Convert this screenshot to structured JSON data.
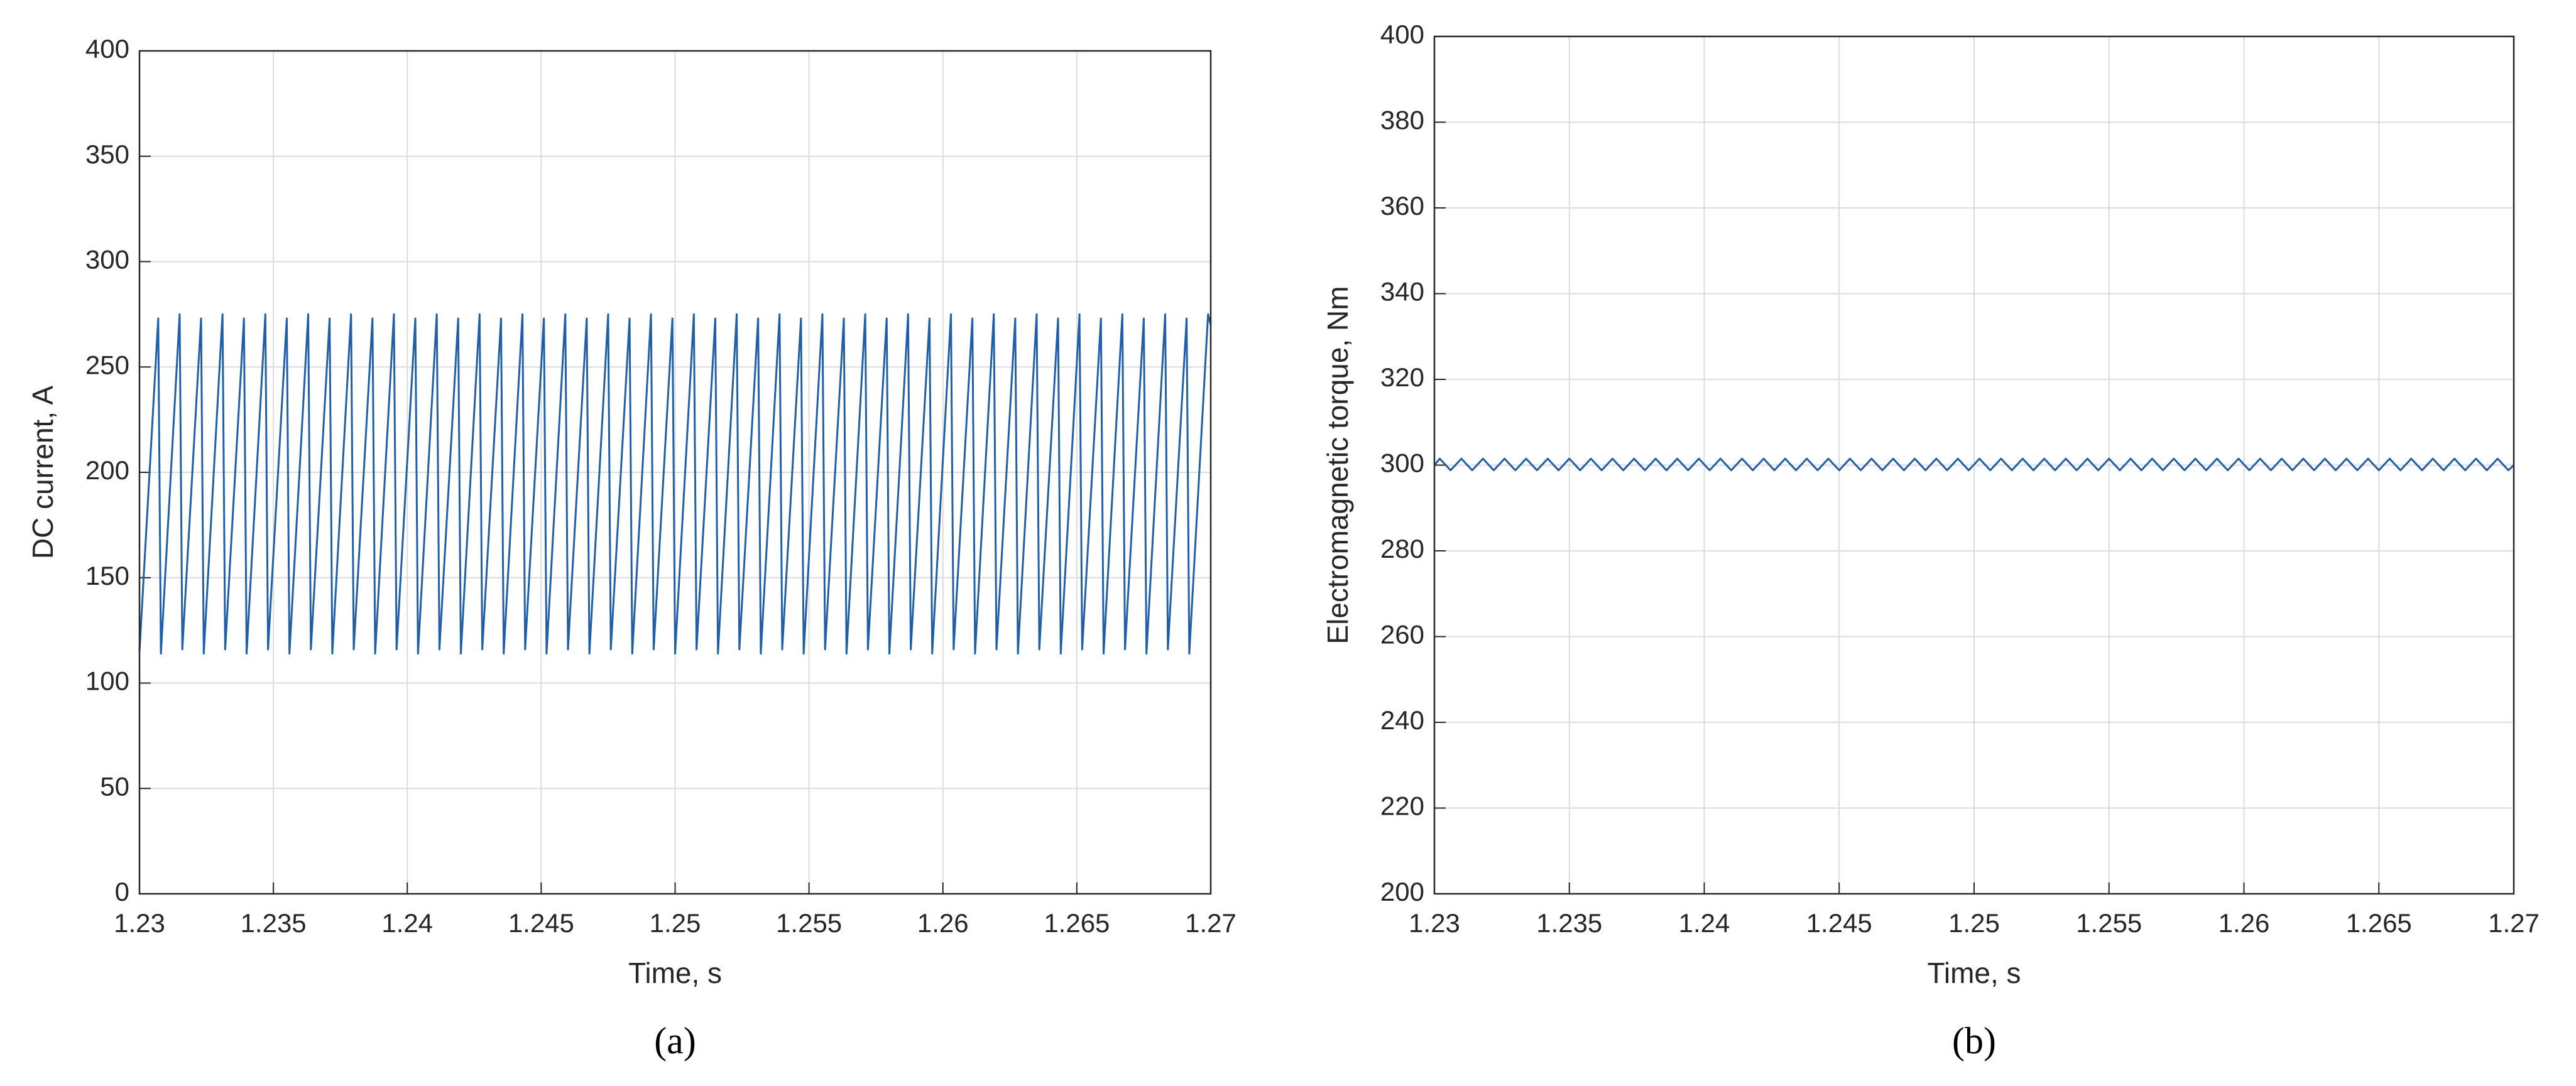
{
  "chart_data": [
    {
      "type": "line",
      "xlabel": "Time, s",
      "ylabel": "DC current, A",
      "caption": "(a)",
      "xlim": [
        1.23,
        1.27
      ],
      "xticks": [
        1.23,
        1.235,
        1.24,
        1.245,
        1.25,
        1.255,
        1.26,
        1.265,
        1.27
      ],
      "ylim": [
        0,
        400
      ],
      "yticks": [
        0,
        50,
        100,
        150,
        200,
        250,
        300,
        350,
        400
      ],
      "grid": true,
      "series": [
        {
          "color": "#1f5fa8",
          "x": [
            1.23,
            1.2307,
            1.2308,
            1.2315,
            1.2316,
            1.2323,
            1.2324,
            1.2331,
            1.2332,
            1.2339,
            1.234,
            1.2347,
            1.2348,
            1.2355,
            1.2356,
            1.2363,
            1.2364,
            1.2371,
            1.2372,
            1.2379,
            1.238,
            1.2387,
            1.2388,
            1.2395,
            1.2396,
            1.2403,
            1.2404,
            1.2411,
            1.2412,
            1.2419,
            1.242,
            1.2427,
            1.2428,
            1.2435,
            1.2436,
            1.2443,
            1.2444,
            1.2451,
            1.2452,
            1.2459,
            1.246,
            1.2467,
            1.2468,
            1.2475,
            1.2476,
            1.2483,
            1.2484,
            1.2491,
            1.2492,
            1.2499,
            1.25,
            1.2507,
            1.2508,
            1.2515,
            1.2516,
            1.2523,
            1.2524,
            1.2531,
            1.2532,
            1.2539,
            1.254,
            1.2547,
            1.2548,
            1.2555,
            1.2556,
            1.2563,
            1.2564,
            1.2571,
            1.2572,
            1.2579,
            1.258,
            1.2587,
            1.2588,
            1.2595,
            1.2596,
            1.2603,
            1.2604,
            1.2611,
            1.2612,
            1.2619,
            1.262,
            1.2627,
            1.2628,
            1.2635,
            1.2636,
            1.2643,
            1.2644,
            1.2651,
            1.2652,
            1.2659,
            1.266,
            1.2667,
            1.2668,
            1.2675,
            1.2676,
            1.2683,
            1.2684,
            1.2691,
            1.2692,
            1.2699,
            1.27
          ],
          "values": [
            115,
            273,
            114,
            275,
            116,
            273,
            114,
            275,
            116,
            273,
            114,
            275,
            116,
            273,
            114,
            275,
            116,
            273,
            114,
            275,
            116,
            273,
            114,
            275,
            116,
            273,
            114,
            275,
            116,
            273,
            114,
            275,
            116,
            273,
            114,
            275,
            116,
            273,
            114,
            275,
            116,
            273,
            114,
            275,
            116,
            273,
            114,
            275,
            116,
            273,
            114,
            275,
            116,
            273,
            114,
            275,
            116,
            273,
            114,
            275,
            116,
            273,
            114,
            275,
            116,
            273,
            114,
            275,
            116,
            273,
            114,
            275,
            116,
            273,
            114,
            275,
            116,
            273,
            114,
            275,
            116,
            273,
            114,
            275,
            116,
            273,
            114,
            275,
            116,
            273,
            114,
            275,
            116,
            273,
            114,
            275,
            116,
            273,
            114,
            275,
            270
          ]
        }
      ]
    },
    {
      "type": "line",
      "xlabel": "Time, s",
      "ylabel": "Electromagnetic torque, Nm",
      "caption": "(b)",
      "xlim": [
        1.23,
        1.27
      ],
      "xticks": [
        1.23,
        1.235,
        1.24,
        1.245,
        1.25,
        1.255,
        1.26,
        1.265,
        1.27
      ],
      "ylim": [
        200,
        400
      ],
      "yticks": [
        200,
        220,
        240,
        260,
        280,
        300,
        320,
        340,
        360,
        380,
        400
      ],
      "grid": true,
      "series": [
        {
          "color": "#1f5fa8",
          "x": [
            1.23,
            1.2302,
            1.2306,
            1.231,
            1.2314,
            1.2318,
            1.2322,
            1.2326,
            1.233,
            1.2334,
            1.2338,
            1.2342,
            1.2346,
            1.235,
            1.2354,
            1.2358,
            1.2362,
            1.2366,
            1.237,
            1.2374,
            1.2378,
            1.2382,
            1.2386,
            1.239,
            1.2394,
            1.2398,
            1.2402,
            1.2406,
            1.241,
            1.2414,
            1.2418,
            1.2422,
            1.2426,
            1.243,
            1.2434,
            1.2438,
            1.2442,
            1.2446,
            1.245,
            1.2454,
            1.2458,
            1.2462,
            1.2466,
            1.247,
            1.2474,
            1.2478,
            1.2482,
            1.2486,
            1.249,
            1.2494,
            1.2498,
            1.2502,
            1.2506,
            1.251,
            1.2514,
            1.2518,
            1.2522,
            1.2526,
            1.253,
            1.2534,
            1.2538,
            1.2542,
            1.2546,
            1.255,
            1.2554,
            1.2558,
            1.2562,
            1.2566,
            1.257,
            1.2574,
            1.2578,
            1.2582,
            1.2586,
            1.259,
            1.2594,
            1.2598,
            1.2602,
            1.2606,
            1.261,
            1.2614,
            1.2618,
            1.2622,
            1.2626,
            1.263,
            1.2634,
            1.2638,
            1.2642,
            1.2646,
            1.265,
            1.2654,
            1.2658,
            1.2662,
            1.2666,
            1.267,
            1.2674,
            1.2678,
            1.2682,
            1.2686,
            1.269,
            1.2694,
            1.2698,
            1.27
          ],
          "values": [
            300,
            301.5,
            298.8,
            301.5,
            298.8,
            301.5,
            298.8,
            301.5,
            298.8,
            301.5,
            298.8,
            301.5,
            298.8,
            301.5,
            298.8,
            301.5,
            298.8,
            301.5,
            298.8,
            301.5,
            298.8,
            301.5,
            298.8,
            301.5,
            298.8,
            301.5,
            298.8,
            301.5,
            298.8,
            301.5,
            298.8,
            301.5,
            298.8,
            301.5,
            298.8,
            301.5,
            298.8,
            301.5,
            298.8,
            301.5,
            298.8,
            301.5,
            298.8,
            301.5,
            298.8,
            301.5,
            298.8,
            301.5,
            298.8,
            301.5,
            298.8,
            301.5,
            298.8,
            301.5,
            298.8,
            301.5,
            298.8,
            301.5,
            298.8,
            301.5,
            298.8,
            301.5,
            298.8,
            301.5,
            298.8,
            301.5,
            298.8,
            301.5,
            298.8,
            301.5,
            298.8,
            301.5,
            298.8,
            301.5,
            298.8,
            301.5,
            298.8,
            301.5,
            298.8,
            301.5,
            298.8,
            301.5,
            298.8,
            301.5,
            298.8,
            301.5,
            298.8,
            301.5,
            298.8,
            301.5,
            298.8,
            301.5,
            298.8,
            301.5,
            298.8,
            301.5,
            298.8,
            301.5,
            298.8,
            301.5,
            298.8,
            300
          ]
        }
      ]
    }
  ]
}
